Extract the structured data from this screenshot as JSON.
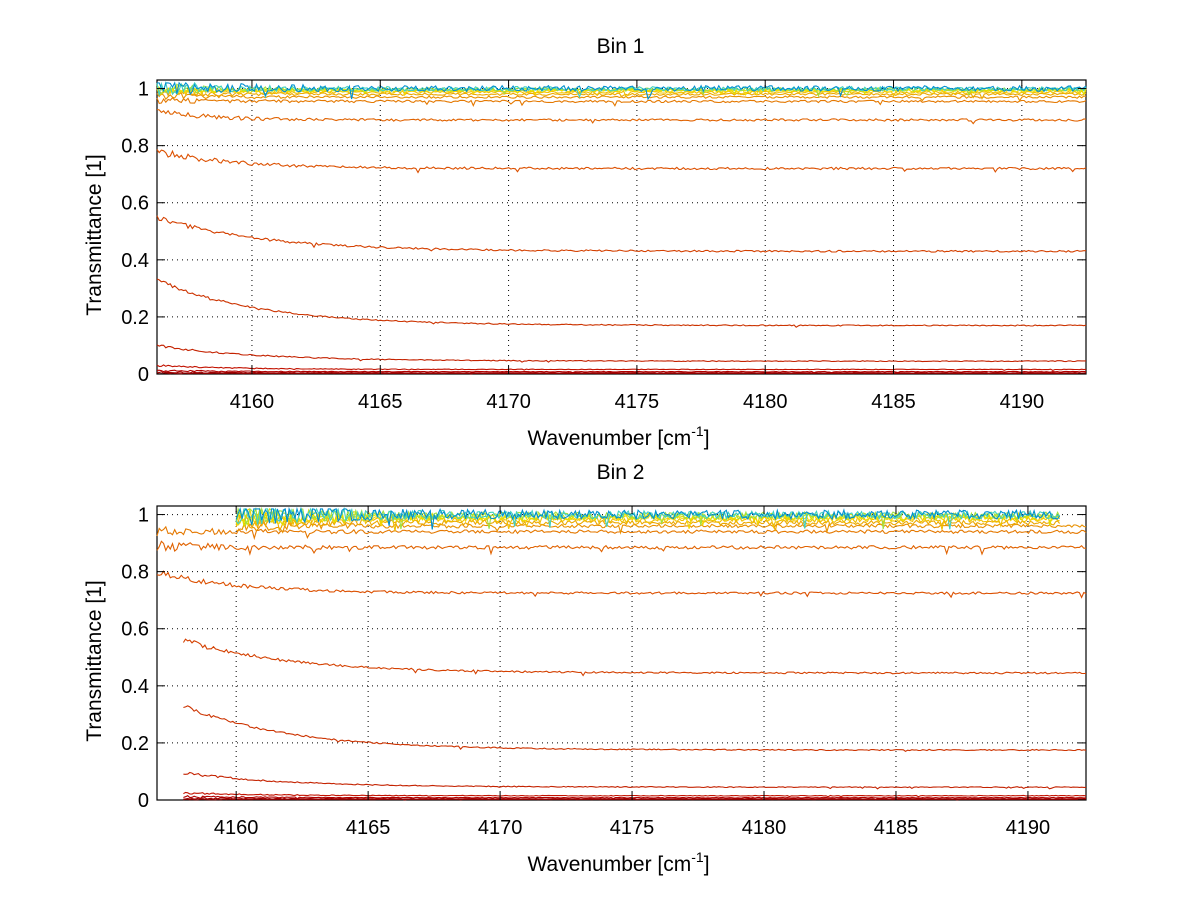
{
  "chart_data": [
    {
      "type": "line",
      "title": "Bin 1",
      "xlabel": "Wavenumber [cm",
      "xlabel_superscript": "-1",
      "xlabel_suffix": "]",
      "ylabel": "Transmittance [1]",
      "xlim": [
        4156.3,
        4192.5
      ],
      "ylim": [
        0,
        1.03
      ],
      "xticks": [
        4160,
        4165,
        4170,
        4175,
        4180,
        4185,
        4190
      ],
      "xtick_labels": [
        "4160",
        "4165",
        "4170",
        "4175",
        "4180",
        "4185",
        "4190"
      ],
      "yticks": [
        0,
        0.2,
        0.4,
        0.6,
        0.8,
        1
      ],
      "ytick_labels": [
        "0",
        "0.2",
        "0.4",
        "0.6",
        "0.8",
        "1"
      ],
      "grid": true,
      "x_start": 4156.3,
      "x_end": 4192.5,
      "series": [
        {
          "color": "#800000",
          "start": 0.002,
          "plateau": 0.002,
          "decay": 3,
          "noise": 0.0005
        },
        {
          "color": "#9e0000",
          "start": 0.006,
          "plateau": 0.004,
          "decay": 3,
          "noise": 0.0008
        },
        {
          "color": "#b00000",
          "start": 0.012,
          "plateau": 0.008,
          "decay": 3,
          "noise": 0.001
        },
        {
          "color": "#c21200",
          "start": 0.03,
          "plateau": 0.016,
          "decay": 3,
          "noise": 0.001
        },
        {
          "color": "#c42200",
          "start": 0.1,
          "plateau": 0.045,
          "decay": 4,
          "noise": 0.0015
        },
        {
          "color": "#cc3300",
          "start": 0.33,
          "plateau": 0.17,
          "decay": 4,
          "noise": 0.002
        },
        {
          "color": "#d44000",
          "start": 0.55,
          "plateau": 0.43,
          "decay": 4,
          "noise": 0.003
        },
        {
          "color": "#dc5000",
          "start": 0.78,
          "plateau": 0.72,
          "decay": 3,
          "noise": 0.004
        },
        {
          "color": "#e06200",
          "start": 0.92,
          "plateau": 0.89,
          "decay": 2,
          "noise": 0.004
        },
        {
          "color": "#e47800",
          "start": 0.96,
          "plateau": 0.955,
          "decay": 2,
          "noise": 0.004
        },
        {
          "color": "#e89000",
          "start": 0.975,
          "plateau": 0.97,
          "decay": 2,
          "noise": 0.004
        },
        {
          "color": "#eca800",
          "start": 0.985,
          "plateau": 0.98,
          "decay": 2,
          "noise": 0.004
        },
        {
          "color": "#f0c000",
          "start": 0.99,
          "plateau": 0.987,
          "decay": 2,
          "noise": 0.004
        },
        {
          "color": "#f4d800",
          "start": 0.995,
          "plateau": 0.992,
          "decay": 2,
          "noise": 0.004
        },
        {
          "color": "#e0e000",
          "start": 0.998,
          "plateau": 0.995,
          "decay": 2,
          "noise": 0.004
        },
        {
          "color": "#a0e040",
          "start": 1.0,
          "plateau": 0.997,
          "decay": 2,
          "noise": 0.006
        },
        {
          "color": "#40d0c0",
          "start": 1.005,
          "plateau": 0.999,
          "decay": 2,
          "noise": 0.008
        },
        {
          "color": "#0090d0",
          "start": 1.01,
          "plateau": 1.0,
          "decay": 2,
          "noise": 0.01
        }
      ]
    },
    {
      "type": "line",
      "title": "Bin 2",
      "xlabel": "Wavenumber [cm",
      "xlabel_superscript": "-1",
      "xlabel_suffix": "]",
      "ylabel": "Transmittance [1]",
      "xlim": [
        4157,
        4192.2
      ],
      "ylim": [
        0,
        1.03
      ],
      "xticks": [
        4160,
        4165,
        4170,
        4175,
        4180,
        4185,
        4190
      ],
      "xtick_labels": [
        "4160",
        "4165",
        "4170",
        "4175",
        "4180",
        "4185",
        "4190"
      ],
      "yticks": [
        0,
        0.2,
        0.4,
        0.6,
        0.8,
        1
      ],
      "ytick_labels": [
        "0",
        "0.2",
        "0.4",
        "0.6",
        "0.8",
        "1"
      ],
      "grid": true,
      "x_start": 4157,
      "x_end": 4192.2,
      "series": [
        {
          "color": "#800000",
          "start": 0.002,
          "plateau": 0.002,
          "decay": 3,
          "noise": 0.0005,
          "x0": 4158
        },
        {
          "color": "#9e0000",
          "start": 0.006,
          "plateau": 0.004,
          "decay": 3,
          "noise": 0.0008,
          "x0": 4158
        },
        {
          "color": "#b00000",
          "start": 0.012,
          "plateau": 0.008,
          "decay": 3,
          "noise": 0.001,
          "x0": 4158
        },
        {
          "color": "#c21200",
          "start": 0.025,
          "plateau": 0.015,
          "decay": 3,
          "noise": 0.001,
          "x0": 4158
        },
        {
          "color": "#c42200",
          "start": 0.095,
          "plateau": 0.045,
          "decay": 4,
          "noise": 0.0015,
          "x0": 4158
        },
        {
          "color": "#cc3300",
          "start": 0.33,
          "plateau": 0.175,
          "decay": 4,
          "noise": 0.002,
          "x0": 4158
        },
        {
          "color": "#d44000",
          "start": 0.56,
          "plateau": 0.445,
          "decay": 4,
          "noise": 0.003,
          "x0": 4158
        },
        {
          "color": "#dc5000",
          "start": 0.8,
          "plateau": 0.725,
          "decay": 3,
          "noise": 0.004
        },
        {
          "color": "#e06200",
          "start": 0.89,
          "plateau": 0.885,
          "decay": 2,
          "noise": 0.006
        },
        {
          "color": "#e47800",
          "start": 0.94,
          "plateau": 0.94,
          "decay": 2,
          "noise": 0.006
        },
        {
          "color": "#e89000",
          "start": 0.96,
          "plateau": 0.96,
          "decay": 2,
          "noise": 0.006,
          "x0": 4160
        },
        {
          "color": "#eca800",
          "start": 0.975,
          "plateau": 0.972,
          "decay": 2,
          "noise": 0.008,
          "x0": 4160,
          "x1": 4191.2
        },
        {
          "color": "#f0c000",
          "start": 0.985,
          "plateau": 0.982,
          "decay": 2,
          "noise": 0.01,
          "x0": 4160,
          "x1": 4191.2
        },
        {
          "color": "#f4d800",
          "start": 0.99,
          "plateau": 0.988,
          "decay": 2,
          "noise": 0.01,
          "x0": 4160,
          "x1": 4191.2
        },
        {
          "color": "#e0e000",
          "start": 0.995,
          "plateau": 0.993,
          "decay": 2,
          "noise": 0.012,
          "x0": 4160,
          "x1": 4191.2
        },
        {
          "color": "#a0e040",
          "start": 1.0,
          "plateau": 0.997,
          "decay": 2,
          "noise": 0.012,
          "x0": 4160,
          "x1": 4191.2
        },
        {
          "color": "#40d0c0",
          "start": 1.005,
          "plateau": 0.999,
          "decay": 2,
          "noise": 0.014,
          "x0": 4160,
          "x1": 4191.2
        },
        {
          "color": "#0090d0",
          "start": 1.01,
          "plateau": 1.0,
          "decay": 2,
          "noise": 0.016,
          "x0": 4160,
          "x1": 4191.2
        }
      ]
    }
  ]
}
